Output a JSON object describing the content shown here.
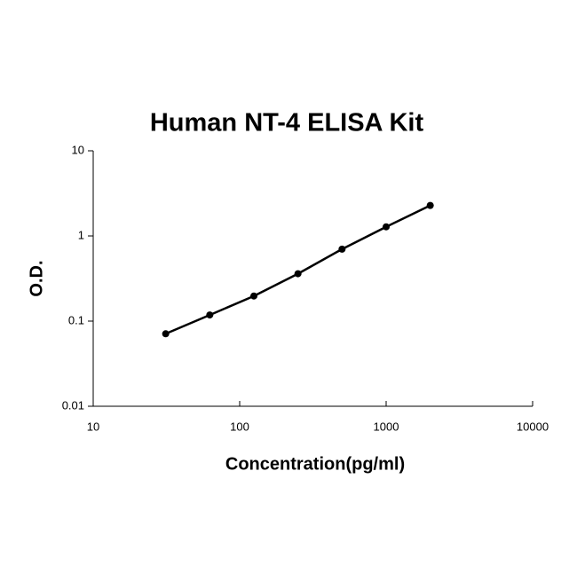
{
  "chart_data": {
    "type": "line",
    "title": "Human NT-4 ELISA Kit",
    "x_label": "Concentration(pg/ml)",
    "y_label": "O.D.",
    "x": [
      31.25,
      62.5,
      125,
      250,
      500,
      1000,
      2000
    ],
    "series": [
      {
        "color": "#000000",
        "values": [
          0.071,
          0.118,
          0.197,
          0.36,
          0.7,
          1.28,
          2.28
        ]
      }
    ],
    "xscale": "log",
    "yscale": "log",
    "xlim": [
      10,
      10000
    ],
    "ylim": [
      0.01,
      10
    ],
    "xticks": [
      10,
      100,
      1000,
      10000
    ],
    "yticks": [
      0.01,
      0.1,
      1,
      10
    ],
    "markers": true,
    "grid": false
  }
}
